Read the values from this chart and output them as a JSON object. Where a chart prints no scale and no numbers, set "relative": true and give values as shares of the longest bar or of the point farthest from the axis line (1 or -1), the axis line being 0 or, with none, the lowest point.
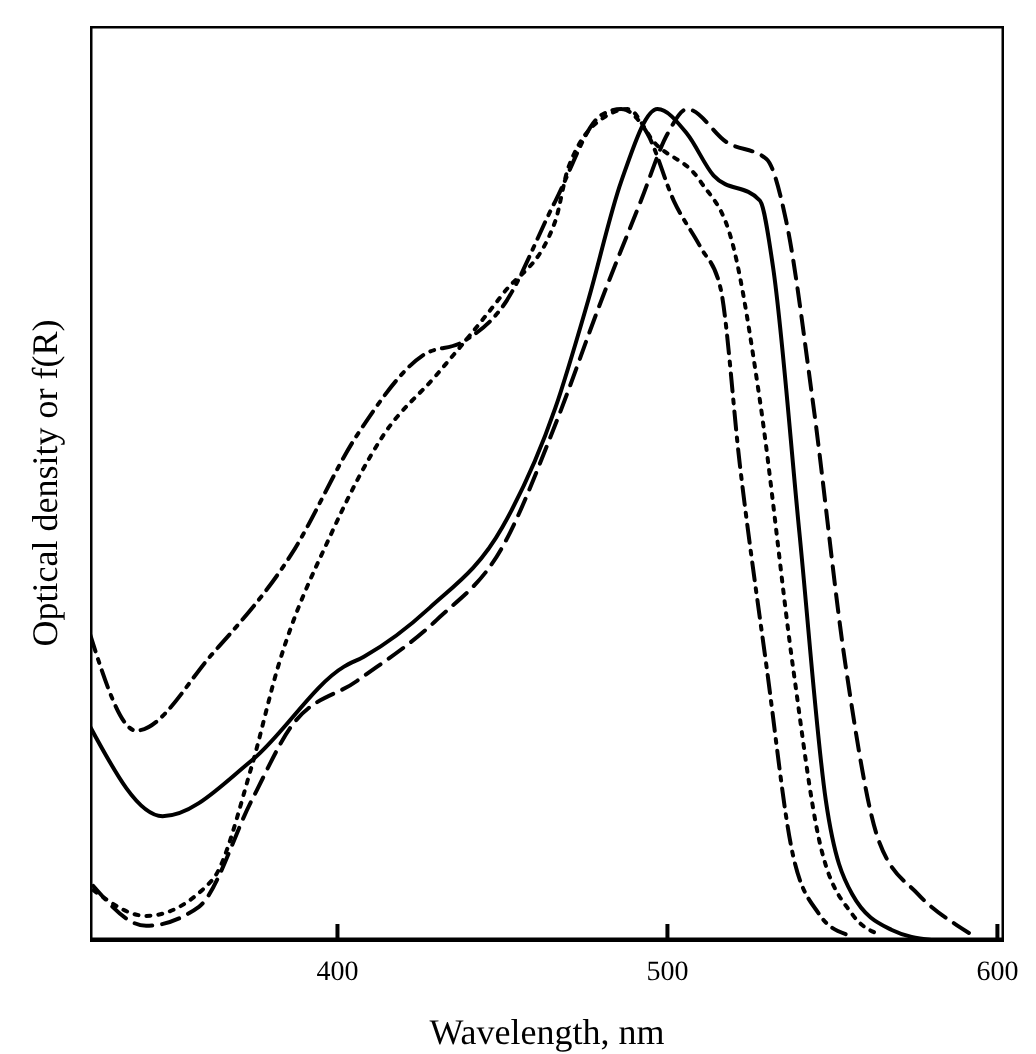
{
  "chart_data": {
    "type": "line",
    "xlabel": "Wavelength, nm",
    "ylabel": "Optical density or f(R)",
    "relative": true,
    "xlim": [
      325,
      602
    ],
    "xticks": [
      400,
      500,
      600
    ],
    "grid": false,
    "legend": false,
    "marker": "none",
    "series": [
      {
        "color": "#000000",
        "line_style": "solid",
        "x": [
          325,
          347,
          374,
          402,
          408,
          428,
          450,
          466,
          476,
          486,
          497,
          506,
          514,
          528,
          532,
          540,
          548,
          556,
          568,
          580
        ],
        "values": [
          0.257,
          0.149,
          0.216,
          0.329,
          0.341,
          0.4,
          0.497,
          0.64,
          0.77,
          0.913,
          1.0,
          0.97,
          0.92,
          0.89,
          0.81,
          0.49,
          0.168,
          0.055,
          0.012,
          0
        ]
      },
      {
        "color": "#000000",
        "line_style": "dashed",
        "x": [
          326,
          342,
          358,
          374,
          386,
          406,
          430,
          450,
          466,
          480,
          492,
          500,
          506,
          518,
          530,
          536,
          544,
          554,
          564,
          576,
          588,
          592
        ],
        "values": [
          0.065,
          0.017,
          0.04,
          0.168,
          0.257,
          0.312,
          0.385,
          0.473,
          0.62,
          0.77,
          0.89,
          0.97,
          1.0,
          0.96,
          0.94,
          0.865,
          0.65,
          0.33,
          0.12,
          0.055,
          0.017,
          0.007
        ]
      },
      {
        "color": "#000000",
        "line_style": "dotted",
        "x": [
          326,
          342,
          362,
          374,
          382,
          398,
          414,
          430,
          450,
          466,
          470,
          482,
          488,
          496,
          510,
          520,
          528,
          538,
          546,
          556,
          564
        ],
        "values": [
          0.06,
          0.029,
          0.072,
          0.209,
          0.329,
          0.488,
          0.608,
          0.68,
          0.777,
          0.865,
          0.93,
          0.993,
          1.0,
          0.96,
          0.913,
          0.834,
          0.65,
          0.33,
          0.12,
          0.031,
          0.007
        ]
      },
      {
        "color": "#000000",
        "line_style": "dashdot",
        "x": [
          325,
          339,
          362,
          386,
          406,
          426,
          438,
          450,
          466,
          480,
          486,
          494,
          502,
          510,
          516,
          522,
          530,
          538,
          546,
          554
        ],
        "values": [
          0.368,
          0.252,
          0.344,
          0.464,
          0.608,
          0.704,
          0.72,
          0.762,
          0.889,
          0.993,
          1.0,
          0.97,
          0.889,
          0.834,
          0.786,
          0.57,
          0.33,
          0.103,
          0.031,
          0.007
        ]
      }
    ]
  }
}
